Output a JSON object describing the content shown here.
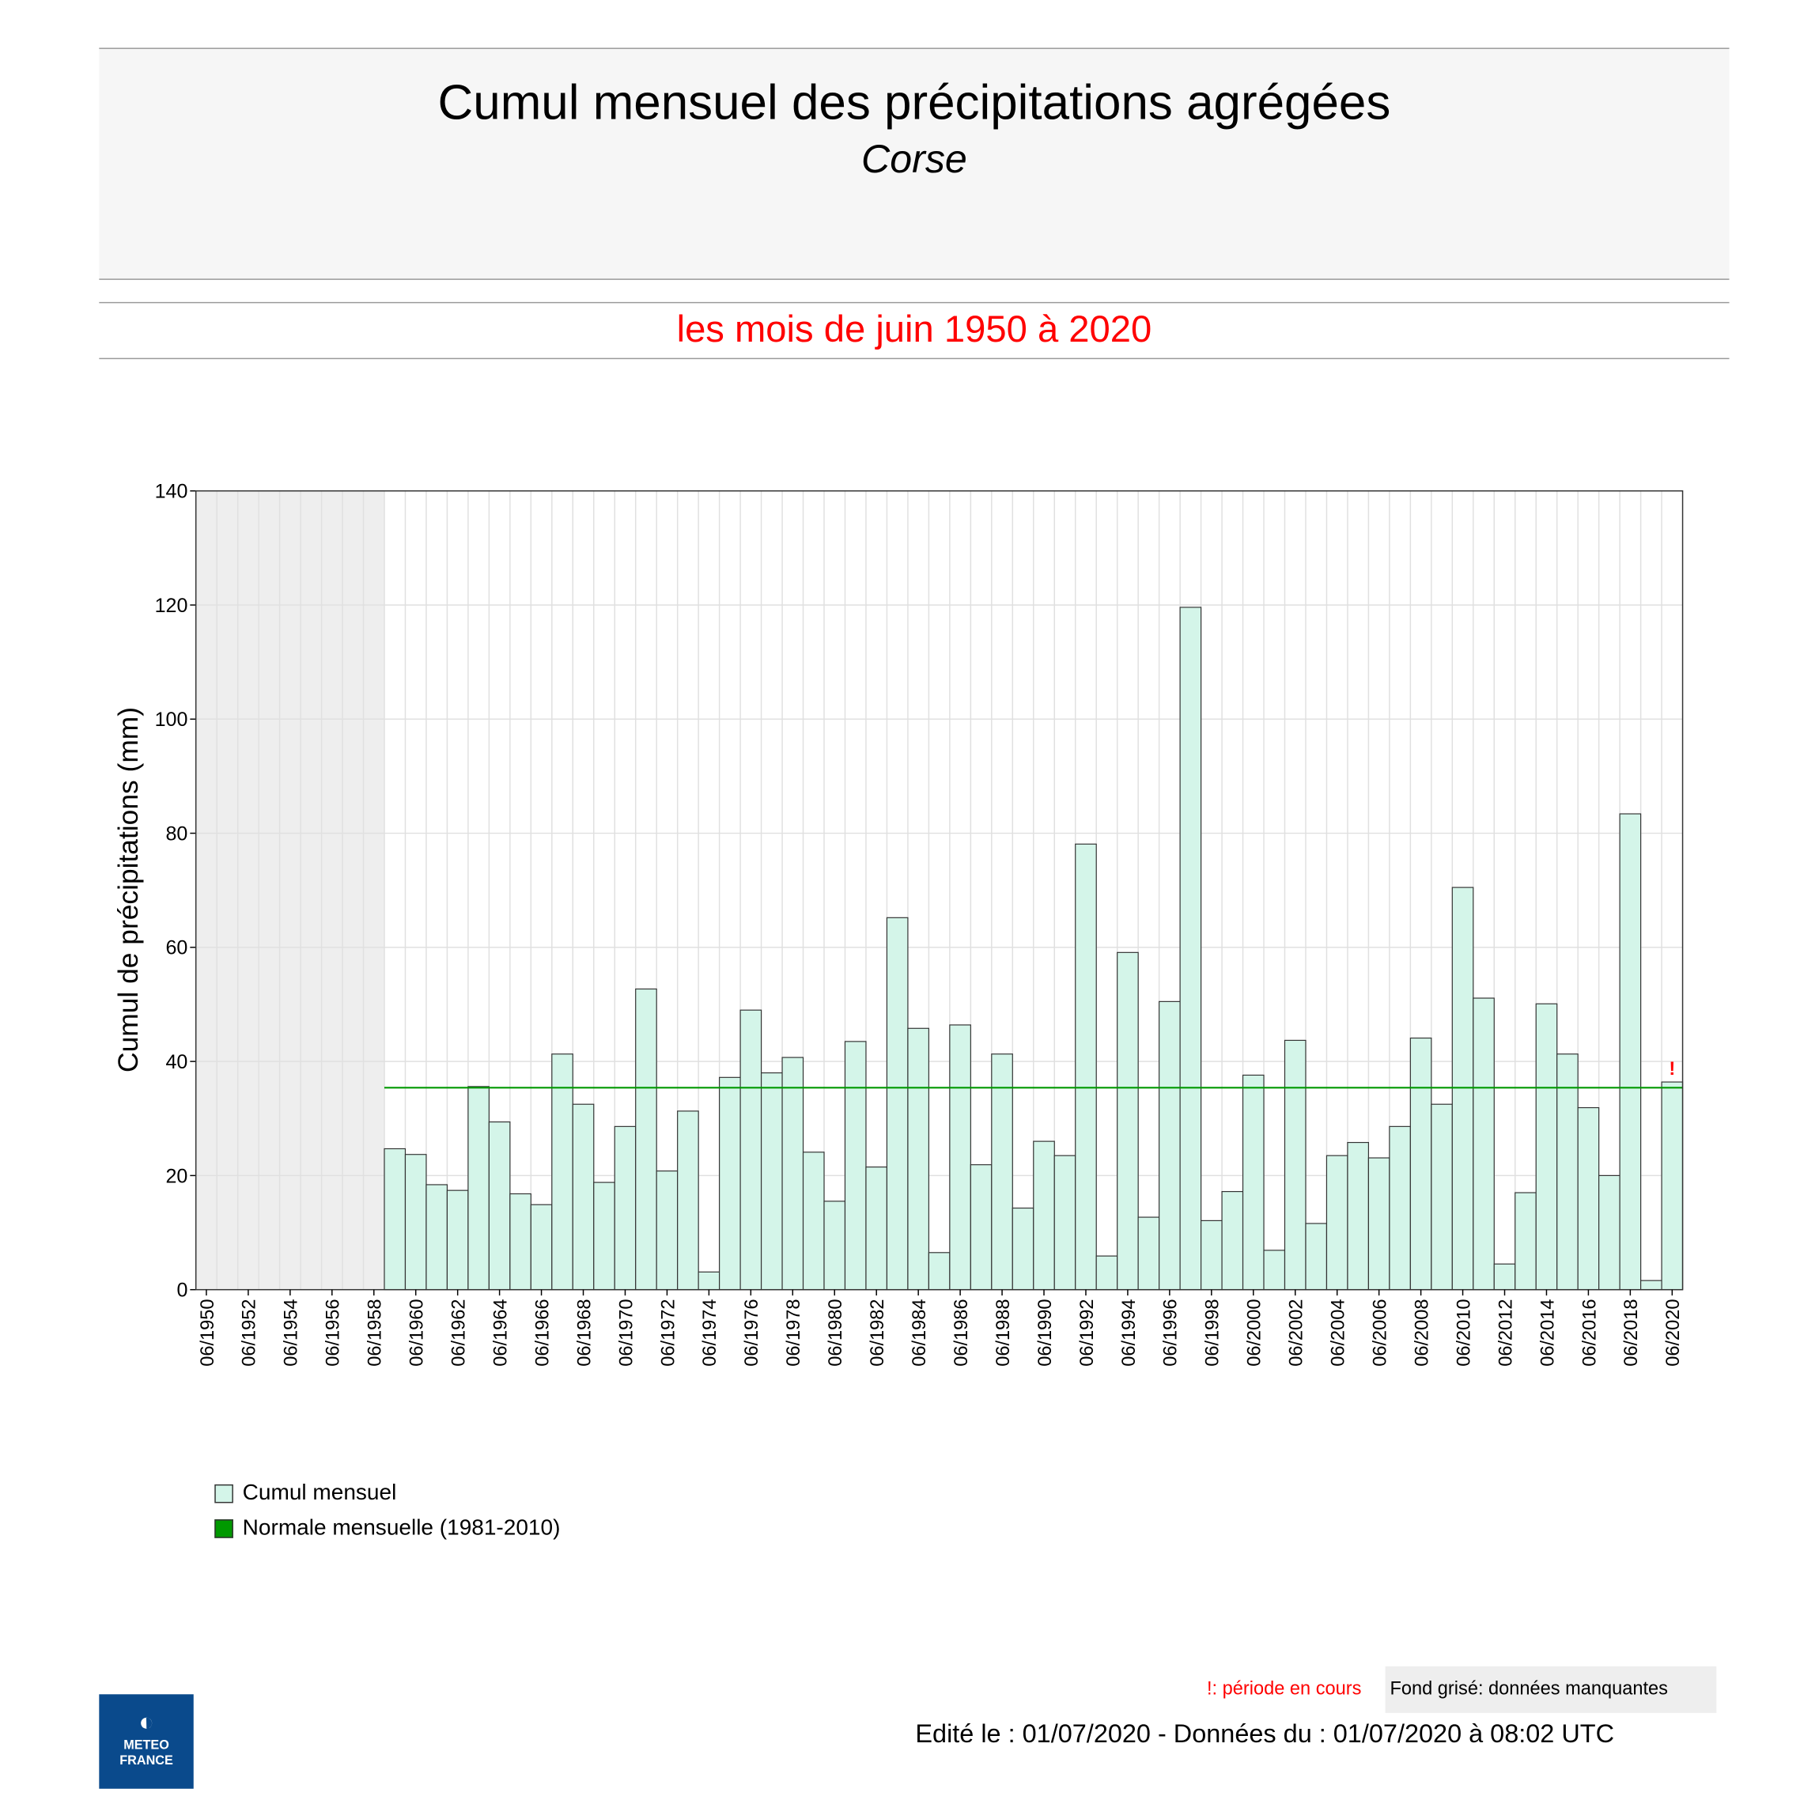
{
  "header": {
    "title": "Cumul mensuel des précipitations agrégées",
    "subtitle": "Corse"
  },
  "period": "les mois de juin 1950 à 2020",
  "chart_data": {
    "type": "bar",
    "ylabel": "Cumul de précipitations (mm)",
    "ylim": [
      0,
      140
    ],
    "yticks": [
      0,
      20,
      40,
      60,
      80,
      100,
      120,
      140
    ],
    "grid": true,
    "categories": [
      "06/1950",
      "06/1951",
      "06/1952",
      "06/1953",
      "06/1954",
      "06/1955",
      "06/1956",
      "06/1957",
      "06/1958",
      "06/1959",
      "06/1960",
      "06/1961",
      "06/1962",
      "06/1963",
      "06/1964",
      "06/1965",
      "06/1966",
      "06/1967",
      "06/1968",
      "06/1969",
      "06/1970",
      "06/1971",
      "06/1972",
      "06/1973",
      "06/1974",
      "06/1975",
      "06/1976",
      "06/1977",
      "06/1978",
      "06/1979",
      "06/1980",
      "06/1981",
      "06/1982",
      "06/1983",
      "06/1984",
      "06/1985",
      "06/1986",
      "06/1987",
      "06/1988",
      "06/1989",
      "06/1990",
      "06/1991",
      "06/1992",
      "06/1993",
      "06/1994",
      "06/1995",
      "06/1996",
      "06/1997",
      "06/1998",
      "06/1999",
      "06/2000",
      "06/2001",
      "06/2002",
      "06/2003",
      "06/2004",
      "06/2005",
      "06/2006",
      "06/2007",
      "06/2008",
      "06/2009",
      "06/2010",
      "06/2011",
      "06/2012",
      "06/2013",
      "06/2014",
      "06/2015",
      "06/2016",
      "06/2017",
      "06/2018",
      "06/2019",
      "06/2020"
    ],
    "series": [
      {
        "name": "Cumul mensuel",
        "color": "#d4f5e9",
        "values": [
          null,
          null,
          null,
          null,
          null,
          null,
          null,
          null,
          null,
          24.7,
          23.7,
          18.4,
          17.4,
          35.6,
          29.4,
          16.8,
          14.9,
          41.3,
          32.5,
          18.8,
          28.6,
          52.7,
          20.8,
          31.3,
          3.1,
          37.2,
          49.0,
          38.0,
          40.7,
          24.1,
          15.5,
          43.5,
          21.5,
          65.2,
          45.8,
          6.5,
          46.4,
          21.9,
          41.3,
          14.3,
          26.0,
          23.5,
          78.1,
          5.9,
          59.1,
          12.7,
          50.5,
          119.6,
          12.1,
          17.2,
          37.6,
          6.9,
          43.7,
          11.6,
          23.5,
          25.8,
          23.1,
          28.6,
          44.1,
          32.5,
          70.5,
          51.1,
          4.5,
          17.0,
          50.1,
          41.3,
          31.9,
          20.0,
          83.4,
          1.6,
          36.4
        ]
      },
      {
        "name": "Normale mensuelle (1981-2010)",
        "color": "#009900",
        "value": 35.4,
        "from": "06/1959",
        "to": "06/2020"
      }
    ],
    "missing_range": [
      "06/1950",
      "06/1958"
    ],
    "current_period_marker": {
      "category": "06/2020",
      "symbol": "!",
      "color": "#ff0000"
    }
  },
  "footer": {
    "note_current": "!: période en cours",
    "note_missing": "Fond grisé: données manquantes",
    "edited": "Edité le : 01/07/2020 - Données du : 01/07/2020 à 08:02 UTC",
    "logo_text": "METEO FRANCE"
  }
}
